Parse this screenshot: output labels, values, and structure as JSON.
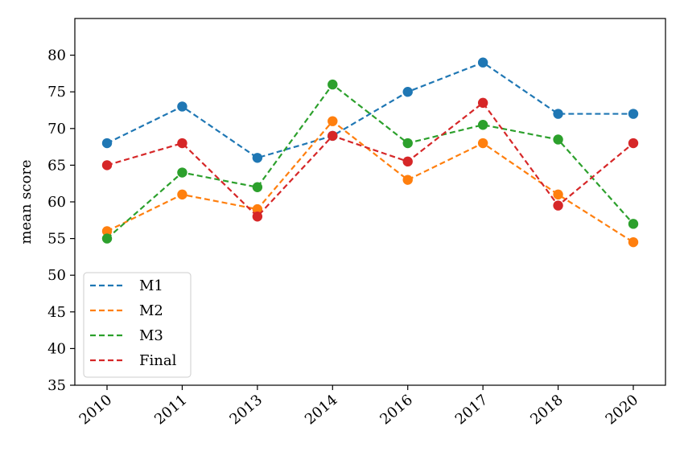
{
  "chart_data": {
    "type": "line",
    "title": "",
    "xlabel": "",
    "ylabel": "mean score",
    "categories": [
      "2010",
      "2011",
      "2013",
      "2014",
      "2016",
      "2017",
      "2018",
      "2020"
    ],
    "ylim": [
      35,
      85
    ],
    "yticks": [
      35,
      40,
      45,
      50,
      55,
      60,
      65,
      70,
      75,
      80
    ],
    "grid": false,
    "legend_position": "lower-left",
    "series": [
      {
        "name": "M1",
        "color": "#1f77b4",
        "values": [
          68,
          73,
          66,
          69,
          75,
          79,
          72,
          72
        ]
      },
      {
        "name": "M2",
        "color": "#ff7f0e",
        "values": [
          56,
          61,
          59,
          71,
          63,
          68,
          61,
          54.5
        ]
      },
      {
        "name": "M3",
        "color": "#2ca02c",
        "values": [
          55,
          64,
          62,
          76,
          68,
          70.5,
          68.5,
          57
        ]
      },
      {
        "name": "Final",
        "color": "#d62728",
        "values": [
          65,
          68,
          58,
          69,
          65.5,
          73.5,
          59.5,
          68
        ]
      }
    ]
  }
}
